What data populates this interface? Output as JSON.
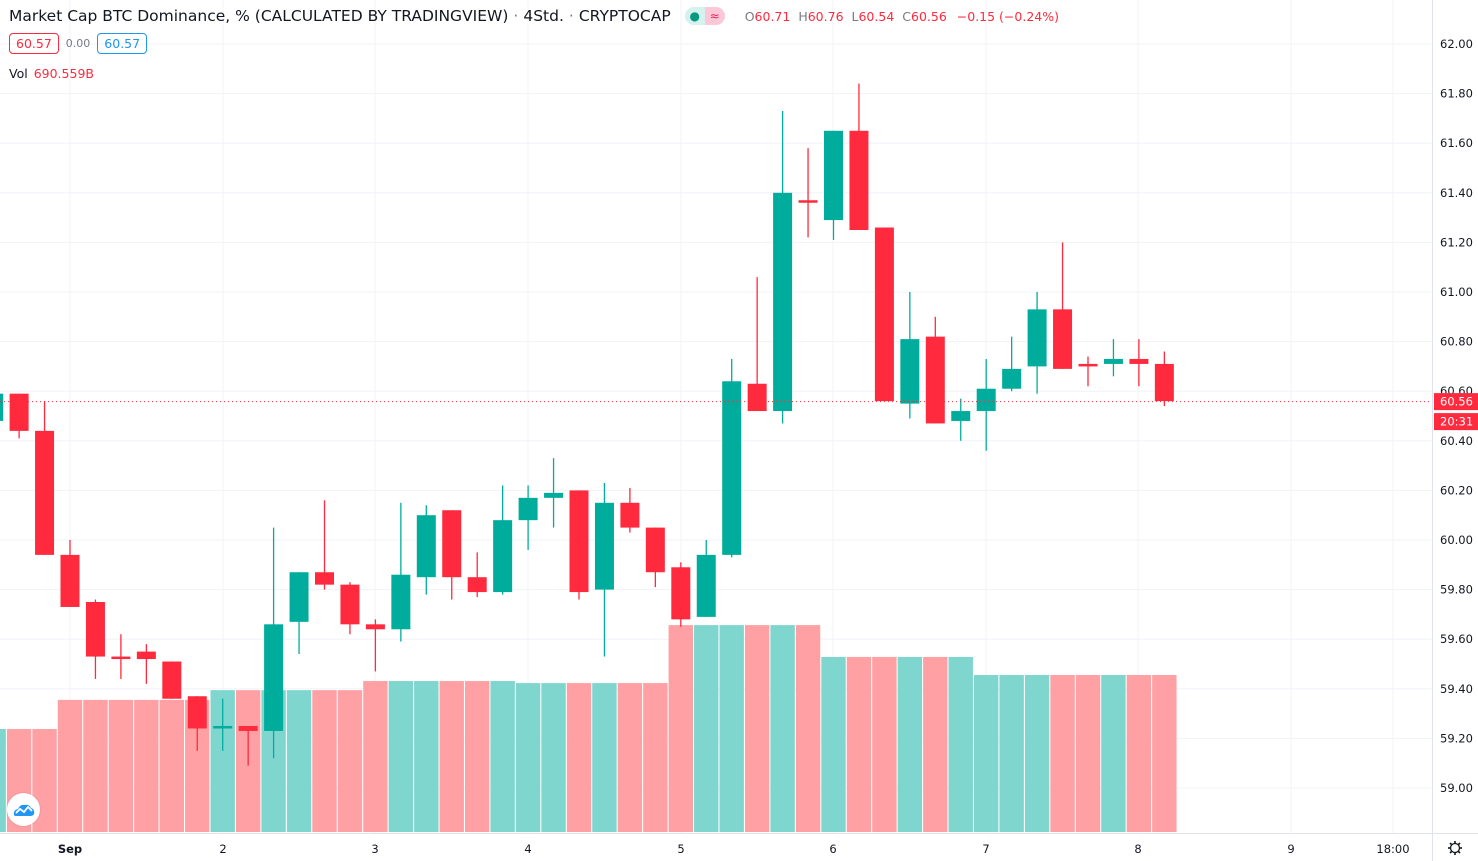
{
  "header": {
    "title": "Market Cap BTC Dominance, % (CALCULATED BY TRADINGVIEW)",
    "interval": "4Std.",
    "exchange": "CRYPTOCAP",
    "status_icons": [
      "market-open-dot-icon",
      "approx-icon"
    ],
    "ohlc": {
      "o_label": "O",
      "o": "60.71",
      "h_label": "H",
      "h": "60.76",
      "l_label": "L",
      "l": "60.54",
      "c_label": "C",
      "c": "60.56",
      "change": "−0.15 (−0.24%)"
    },
    "bid": "60.57",
    "spread": "0.00",
    "ask": "60.57",
    "vol_label": "Vol",
    "vol_value": "690.559B"
  },
  "price_axis": {
    "last_price": "60.56",
    "countdown": "20:31"
  },
  "colors": {
    "up": "#00ad9c",
    "down": "#ff2a3d",
    "vol_up": "#7fd6cf",
    "vol_down": "#ffa1a4",
    "bid": "#ff2a3d",
    "ask": "#2196f3"
  },
  "chart_data": {
    "type": "candlestick",
    "title": "Market Cap BTC Dominance, % (CALCULATED BY TRADINGVIEW)",
    "interval": "4h",
    "ylim": [
      58.85,
      62.1
    ],
    "y_ticks": [
      "62.00",
      "61.80",
      "61.60",
      "61.40",
      "61.20",
      "61.00",
      "60.80",
      "60.60",
      "60.40",
      "60.20",
      "60.00",
      "59.80",
      "59.60",
      "59.40",
      "59.20",
      "59.00"
    ],
    "x_ticks": [
      "Sep",
      "2",
      "3",
      "4",
      "5",
      "6",
      "7",
      "8",
      "9",
      "18:00"
    ],
    "grid": true,
    "candles": [
      {
        "t": "Aug 31 12:00",
        "o": 60.48,
        "h": 60.6,
        "l": 60.46,
        "c": 60.59,
        "v": 453
      },
      {
        "t": "Aug 31 16:00",
        "o": 60.59,
        "h": 60.59,
        "l": 60.41,
        "c": 60.44,
        "v": 453
      },
      {
        "t": "Aug 31 20:00",
        "o": 60.44,
        "h": 60.56,
        "l": 59.94,
        "c": 59.94,
        "v": 453
      },
      {
        "t": "Sep 1 00:00",
        "o": 59.94,
        "h": 60.0,
        "l": 59.73,
        "c": 59.73,
        "v": 581
      },
      {
        "t": "Sep 1 04:00",
        "o": 59.75,
        "h": 59.76,
        "l": 59.44,
        "c": 59.53,
        "v": 581
      },
      {
        "t": "Sep 1 08:00",
        "o": 59.53,
        "h": 59.62,
        "l": 59.44,
        "c": 59.52,
        "v": 581
      },
      {
        "t": "Sep 1 12:00",
        "o": 59.55,
        "h": 59.58,
        "l": 59.42,
        "c": 59.52,
        "v": 581
      },
      {
        "t": "Sep 1 16:00",
        "o": 59.51,
        "h": 59.51,
        "l": 59.36,
        "c": 59.36,
        "v": 581
      },
      {
        "t": "Sep 1 20:00",
        "o": 59.37,
        "h": 59.37,
        "l": 59.15,
        "c": 59.24,
        "v": 581
      },
      {
        "t": "Sep 2 00:00",
        "o": 59.24,
        "h": 59.36,
        "l": 59.15,
        "c": 59.25,
        "v": 624
      },
      {
        "t": "Sep 2 04:00",
        "o": 59.25,
        "h": 59.25,
        "l": 59.09,
        "c": 59.23,
        "v": 624
      },
      {
        "t": "Sep 2 08:00",
        "o": 59.23,
        "h": 60.05,
        "l": 59.12,
        "c": 59.66,
        "v": 624
      },
      {
        "t": "Sep 2 12:00",
        "o": 59.67,
        "h": 59.87,
        "l": 59.54,
        "c": 59.87,
        "v": 624
      },
      {
        "t": "Sep 2 16:00",
        "o": 59.87,
        "h": 60.16,
        "l": 59.8,
        "c": 59.82,
        "v": 624
      },
      {
        "t": "Sep 2 20:00",
        "o": 59.82,
        "h": 59.83,
        "l": 59.62,
        "c": 59.66,
        "v": 624
      },
      {
        "t": "Sep 3 00:00",
        "o": 59.66,
        "h": 59.68,
        "l": 59.47,
        "c": 59.64,
        "v": 664
      },
      {
        "t": "Sep 3 04:00",
        "o": 59.64,
        "h": 60.15,
        "l": 59.59,
        "c": 59.86,
        "v": 664
      },
      {
        "t": "Sep 3 08:00",
        "o": 59.85,
        "h": 60.14,
        "l": 59.78,
        "c": 60.1,
        "v": 664
      },
      {
        "t": "Sep 3 12:00",
        "o": 60.12,
        "h": 60.12,
        "l": 59.76,
        "c": 59.85,
        "v": 664
      },
      {
        "t": "Sep 3 16:00",
        "o": 59.85,
        "h": 59.95,
        "l": 59.77,
        "c": 59.79,
        "v": 664
      },
      {
        "t": "Sep 3 20:00",
        "o": 59.79,
        "h": 60.22,
        "l": 59.78,
        "c": 60.08,
        "v": 664
      },
      {
        "t": "Sep 4 00:00",
        "o": 60.08,
        "h": 60.22,
        "l": 59.96,
        "c": 60.17,
        "v": 655
      },
      {
        "t": "Sep 4 04:00",
        "o": 60.17,
        "h": 60.33,
        "l": 60.05,
        "c": 60.19,
        "v": 655
      },
      {
        "t": "Sep 4 08:00",
        "o": 60.2,
        "h": 60.2,
        "l": 59.76,
        "c": 59.79,
        "v": 655
      },
      {
        "t": "Sep 4 12:00",
        "o": 59.8,
        "h": 60.23,
        "l": 59.53,
        "c": 60.15,
        "v": 655
      },
      {
        "t": "Sep 4 16:00",
        "o": 60.15,
        "h": 60.21,
        "l": 60.03,
        "c": 60.05,
        "v": 655
      },
      {
        "t": "Sep 4 20:00",
        "o": 60.05,
        "h": 60.05,
        "l": 59.81,
        "c": 59.87,
        "v": 655
      },
      {
        "t": "Sep 5 00:00",
        "o": 59.89,
        "h": 59.91,
        "l": 59.65,
        "c": 59.68,
        "v": 910
      },
      {
        "t": "Sep 5 04:00",
        "o": 59.69,
        "h": 60.0,
        "l": 59.69,
        "c": 59.94,
        "v": 910
      },
      {
        "t": "Sep 5 08:00",
        "o": 59.94,
        "h": 60.73,
        "l": 59.93,
        "c": 60.64,
        "v": 910
      },
      {
        "t": "Sep 5 12:00",
        "o": 60.63,
        "h": 61.06,
        "l": 60.52,
        "c": 60.52,
        "v": 910
      },
      {
        "t": "Sep 5 16:00",
        "o": 60.52,
        "h": 61.73,
        "l": 60.47,
        "c": 61.4,
        "v": 910
      },
      {
        "t": "Sep 5 20:00",
        "o": 61.37,
        "h": 61.58,
        "l": 61.22,
        "c": 61.36,
        "v": 910
      },
      {
        "t": "Sep 6 00:00",
        "o": 61.29,
        "h": 61.65,
        "l": 61.21,
        "c": 61.65,
        "v": 770
      },
      {
        "t": "Sep 6 04:00",
        "o": 61.65,
        "h": 61.84,
        "l": 61.25,
        "c": 61.25,
        "v": 770
      },
      {
        "t": "Sep 6 08:00",
        "o": 61.26,
        "h": 61.26,
        "l": 60.56,
        "c": 60.56,
        "v": 770
      },
      {
        "t": "Sep 6 12:00",
        "o": 60.55,
        "h": 61.0,
        "l": 60.49,
        "c": 60.81,
        "v": 770
      },
      {
        "t": "Sep 6 16:00",
        "o": 60.82,
        "h": 60.9,
        "l": 60.47,
        "c": 60.47,
        "v": 770
      },
      {
        "t": "Sep 6 20:00",
        "o": 60.48,
        "h": 60.57,
        "l": 60.4,
        "c": 60.52,
        "v": 770
      },
      {
        "t": "Sep 7 00:00",
        "o": 60.52,
        "h": 60.73,
        "l": 60.36,
        "c": 60.61,
        "v": 690.559
      },
      {
        "t": "Sep 7 04:00",
        "o": 60.61,
        "h": 60.82,
        "l": 60.6,
        "c": 60.69,
        "v": 690.559
      },
      {
        "t": "Sep 7 08:00",
        "o": 60.7,
        "h": 61.0,
        "l": 60.59,
        "c": 60.93,
        "v": 690.559
      },
      {
        "t": "Sep 7 12:00",
        "o": 60.93,
        "h": 61.2,
        "l": 60.69,
        "c": 60.69,
        "v": 690.559
      },
      {
        "t": "Sep 7 16:00",
        "o": 60.71,
        "h": 60.74,
        "l": 60.62,
        "c": 60.7,
        "v": 690.559
      },
      {
        "t": "Sep 7 20:00",
        "o": 60.71,
        "h": 60.81,
        "l": 60.66,
        "c": 60.73,
        "v": 690.559
      },
      {
        "t": "Sep 8 00:00",
        "o": 60.73,
        "h": 60.81,
        "l": 60.62,
        "c": 60.71,
        "v": 690.559
      },
      {
        "t": "Sep 8 04:00",
        "o": 60.71,
        "h": 60.76,
        "l": 60.54,
        "c": 60.56,
        "v": 690.559
      }
    ],
    "volume_unit": "B"
  }
}
